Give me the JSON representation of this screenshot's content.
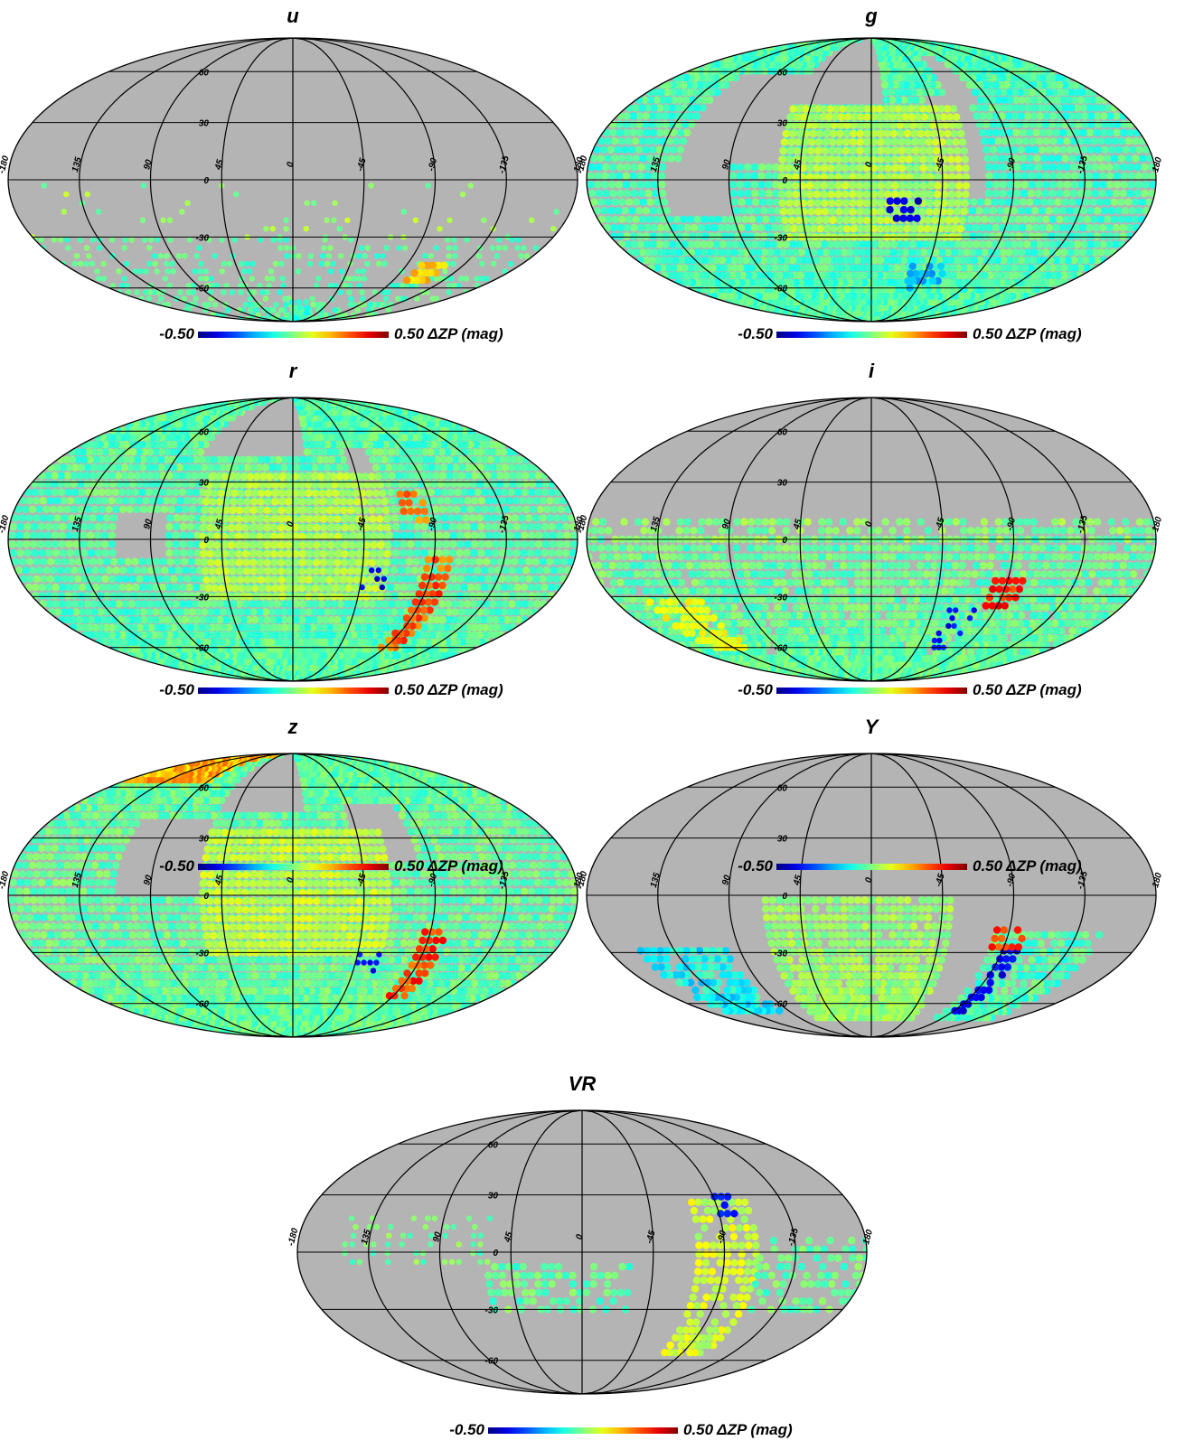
{
  "chart_data": {
    "type": "heatmap",
    "projection": "mollweide",
    "grid": true,
    "colormap": "jet",
    "missing_color": "#b4b4b4",
    "latitude_ticks": [
      "60",
      "30",
      "0",
      "-30",
      "-60"
    ],
    "longitude_ticks": [
      "-180",
      "135",
      "90",
      "45",
      "0",
      "-45",
      "-90",
      "-135",
      "180"
    ],
    "longitude_tick_values": [
      180,
      135,
      90,
      45,
      0,
      -45,
      -90,
      -135,
      -180
    ],
    "latitude_tick_values": [
      60,
      30,
      0,
      -30,
      -60
    ],
    "colorbar": {
      "min_label": "-0.50",
      "max_label": "0.50",
      "unit_label": "ΔZP (mag)",
      "range": [
        -0.5,
        0.5
      ]
    },
    "panels": [
      {
        "title": "u",
        "base_fill": false,
        "regions": [
          {
            "lon": [
              -180,
              180
            ],
            "lat": [
              -90,
              -30
            ],
            "value": -0.04,
            "density": 0.35,
            "vary": 0.05
          },
          {
            "lon": [
              -180,
              180
            ],
            "lat": [
              -30,
              0
            ],
            "value": 0.02,
            "density": 0.08,
            "vary": 0.06
          },
          {
            "lon": [
              -120,
              -100
            ],
            "lat": [
              -55,
              -45
            ],
            "value": 0.18,
            "density": 0.9,
            "vary": 0.05
          },
          {
            "lon": [
              -30,
              10
            ],
            "lat": [
              -88,
              -70
            ],
            "value": -0.08,
            "density": 0.4,
            "vary": 0.05
          }
        ]
      },
      {
        "title": "g",
        "base_fill": true,
        "base_value": -0.05,
        "base_vary": 0.06,
        "holes": [
          {
            "lon": [
              -10,
              60
            ],
            "lat": [
              40,
              90
            ]
          },
          {
            "lon": [
              60,
              120
            ],
            "lat": [
              10,
              60
            ]
          },
          {
            "lon": [
              -70,
              -40
            ],
            "lat": [
              -10,
              45
            ]
          },
          {
            "lon": [
              -80,
              -60
            ],
            "lat": [
              40,
              70
            ]
          },
          {
            "lon": [
              90,
              130
            ],
            "lat": [
              -20,
              10
            ]
          }
        ],
        "regions": [
          {
            "lon": [
              -60,
              60
            ],
            "lat": [
              -30,
              40
            ],
            "value": 0.05,
            "density": 1.0,
            "vary": 0.04
          },
          {
            "lon": [
              -30,
              -10
            ],
            "lat": [
              -20,
              -10
            ],
            "value": -0.42,
            "density": 0.7,
            "vary": 0.04
          },
          {
            "lon": [
              -60,
              -30
            ],
            "lat": [
              -60,
              -45
            ],
            "value": -0.2,
            "density": 0.6,
            "vary": 0.05
          }
        ]
      },
      {
        "title": "r",
        "base_fill": true,
        "base_value": -0.04,
        "base_vary": 0.06,
        "holes": [
          {
            "lon": [
              -10,
              70
            ],
            "lat": [
              45,
              90
            ]
          },
          {
            "lon": [
              -60,
              -40
            ],
            "lat": [
              10,
              50
            ]
          },
          {
            "lon": [
              80,
              110
            ],
            "lat": [
              -10,
              15
            ]
          }
        ],
        "regions": [
          {
            "lon": [
              -60,
              60
            ],
            "lat": [
              -30,
              35
            ],
            "value": 0.05,
            "density": 1.0,
            "vary": 0.04
          },
          {
            "lon": [
              -100,
              -85
            ],
            "lat": [
              -60,
              -10
            ],
            "value": 0.28,
            "density": 0.9,
            "vary": 0.08
          },
          {
            "lon": [
              -85,
              -70
            ],
            "lat": [
              10,
              25
            ],
            "value": 0.25,
            "density": 0.8,
            "vary": 0.06
          },
          {
            "lon": [
              -60,
              -40
            ],
            "lat": [
              -25,
              -15
            ],
            "value": -0.4,
            "density": 0.3,
            "vary": 0.04
          }
        ]
      },
      {
        "title": "i",
        "base_fill": false,
        "regions": [
          {
            "lon": [
              -180,
              180
            ],
            "lat": [
              -90,
              0
            ],
            "value": -0.03,
            "density": 0.95,
            "vary": 0.06
          },
          {
            "lon": [
              -180,
              180
            ],
            "lat": [
              0,
              10
            ],
            "value": 0.0,
            "density": 0.7,
            "vary": 0.06
          },
          {
            "lon": [
              -100,
              -80
            ],
            "lat": [
              -35,
              -20
            ],
            "value": 0.35,
            "density": 0.9,
            "vary": 0.06
          },
          {
            "lon": [
              -75,
              -55
            ],
            "lat": [
              -60,
              -35
            ],
            "value": -0.38,
            "density": 0.4,
            "vary": 0.05
          },
          {
            "lon": [
              120,
              160
            ],
            "lat": [
              -60,
              -30
            ],
            "value": 0.12,
            "density": 0.8,
            "vary": 0.04
          }
        ]
      },
      {
        "title": "z",
        "base_fill": true,
        "base_value": -0.03,
        "base_vary": 0.06,
        "holes": [
          {
            "lon": [
              -10,
              60
            ],
            "lat": [
              45,
              90
            ]
          },
          {
            "lon": [
              60,
              110
            ],
            "lat": [
              0,
              40
            ]
          },
          {
            "lon": [
              -80,
              -40
            ],
            "lat": [
              20,
              50
            ]
          }
        ],
        "regions": [
          {
            "lon": [
              -60,
              60
            ],
            "lat": [
              -30,
              35
            ],
            "value": 0.07,
            "density": 1.0,
            "vary": 0.04
          },
          {
            "lon": [
              90,
              180
            ],
            "lat": [
              65,
              90
            ],
            "value": 0.2,
            "density": 1.0,
            "vary": 0.08
          },
          {
            "lon": [
              -100,
              -85
            ],
            "lat": [
              -55,
              -15
            ],
            "value": 0.32,
            "density": 0.9,
            "vary": 0.08
          },
          {
            "lon": [
              -60,
              -40
            ],
            "lat": [
              -40,
              -30
            ],
            "value": -0.38,
            "density": 0.4,
            "vary": 0.04
          }
        ]
      },
      {
        "title": "Y",
        "base_fill": false,
        "regions": [
          {
            "lon": [
              -50,
              70
            ],
            "lat": [
              -70,
              0
            ],
            "value": 0.02,
            "density": 0.95,
            "vary": 0.05
          },
          {
            "lon": [
              -150,
              -80
            ],
            "lat": [
              -70,
              -20
            ],
            "value": -0.05,
            "density": 0.9,
            "vary": 0.06
          },
          {
            "lon": [
              100,
              160
            ],
            "lat": [
              -65,
              -25
            ],
            "value": -0.12,
            "density": 0.9,
            "vary": 0.08
          },
          {
            "lon": [
              -100,
              -90
            ],
            "lat": [
              -65,
              -25
            ],
            "value": -0.38,
            "density": 0.9,
            "vary": 0.05
          },
          {
            "lon": [
              -100,
              -80
            ],
            "lat": [
              -27,
              -18
            ],
            "value": 0.32,
            "density": 0.9,
            "vary": 0.05
          }
        ]
      },
      {
        "title": "VR",
        "base_fill": false,
        "regions": [
          {
            "lon": [
              60,
              150
            ],
            "lat": [
              -5,
              20
            ],
            "value": -0.02,
            "density": 0.4,
            "vary": 0.06
          },
          {
            "lon": [
              -30,
              60
            ],
            "lat": [
              -30,
              -5
            ],
            "value": -0.03,
            "density": 0.6,
            "vary": 0.06
          },
          {
            "lon": [
              -110,
              -70
            ],
            "lat": [
              -55,
              30
            ],
            "value": 0.08,
            "density": 0.75,
            "vary": 0.06
          },
          {
            "lon": [
              -180,
              -110
            ],
            "lat": [
              -30,
              10
            ],
            "value": -0.03,
            "density": 0.55,
            "vary": 0.06
          },
          {
            "lon": [
              -100,
              -88
            ],
            "lat": [
              20,
              30
            ],
            "value": -0.35,
            "density": 0.5,
            "vary": 0.04
          }
        ]
      }
    ]
  }
}
